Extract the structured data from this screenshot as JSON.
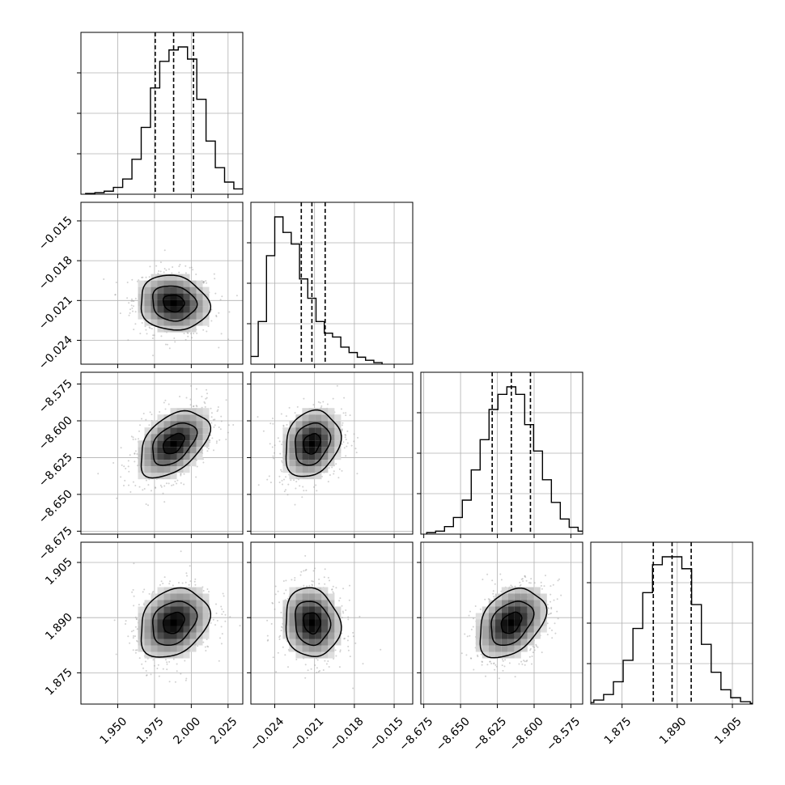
{
  "chart_data": {
    "type": "corner",
    "grid": true,
    "colors": {
      "hist": "#000000",
      "contour": "#000000",
      "grid": "#b0b0b0",
      "scatter": "#9a9a9a"
    },
    "parameters": [
      {
        "range": [
          1.925,
          2.035
        ],
        "ticks": [
          1.95,
          1.975,
          2.0,
          2.025
        ],
        "tick_labels": [
          "1.950",
          "1.975",
          "2.000",
          "2.025"
        ],
        "mean": 1.988,
        "sd": 0.013,
        "quantiles": [
          1.9755,
          1.988,
          2.0015
        ]
      },
      {
        "range": [
          -0.0258,
          -0.0136
        ],
        "ticks": [
          -0.024,
          -0.021,
          -0.018,
          -0.015
        ],
        "tick_labels": [
          "−0.024",
          "−0.021",
          "−0.018",
          "−0.015"
        ],
        "mean": -0.0212,
        "sd": 0.00115,
        "quantiles": [
          -0.022,
          -0.0212,
          -0.0202
        ]
      },
      {
        "range": [
          -8.677,
          -8.567
        ],
        "ticks": [
          -8.675,
          -8.65,
          -8.625,
          -8.6,
          -8.575
        ],
        "tick_labels": [
          "−8.675",
          "−8.650",
          "−8.625",
          "−8.600",
          "−8.575"
        ],
        "mean": -8.6155,
        "sd": 0.0125,
        "quantiles": [
          -8.6285,
          -8.6155,
          -8.6025
        ]
      },
      {
        "range": [
          1.8665,
          1.9105
        ],
        "ticks": [
          1.875,
          1.89,
          1.905
        ],
        "tick_labels": [
          "1.875",
          "1.890",
          "1.905"
        ],
        "mean": 1.8886,
        "sd": 0.0052,
        "quantiles": [
          1.8835,
          1.8886,
          1.8938
        ]
      }
    ],
    "hist1d": [
      {
        "values": [
          1,
          2,
          4,
          9,
          20,
          46,
          88,
          140,
          175,
          190,
          194,
          178,
          125,
          70,
          35,
          16,
          7,
          3,
          1
        ]
      },
      {
        "values": [
          3,
          10,
          55,
          140,
          190,
          170,
          155,
          110,
          85,
          55,
          40,
          35,
          22,
          15,
          9,
          5,
          2
        ]
      },
      {
        "values": [
          2,
          4,
          10,
          22,
          45,
          85,
          125,
          165,
          185,
          195,
          185,
          145,
          110,
          72,
          42,
          20,
          9,
          4,
          2
        ]
      },
      {
        "values": [
          2,
          5,
          12,
          28,
          55,
          95,
          140,
          175,
          185,
          185,
          170,
          125,
          75,
          40,
          18,
          8,
          3,
          1
        ]
      }
    ],
    "correlations": [
      {
        "row": 1,
        "col": 0,
        "rho": -0.1
      },
      {
        "row": 2,
        "col": 0,
        "rho": 0.45
      },
      {
        "row": 2,
        "col": 1,
        "rho": 0.2
      },
      {
        "row": 3,
        "col": 0,
        "rho": 0.25
      },
      {
        "row": 3,
        "col": 1,
        "rho": -0.1
      },
      {
        "row": 3,
        "col": 2,
        "rho": 0.35
      }
    ]
  }
}
